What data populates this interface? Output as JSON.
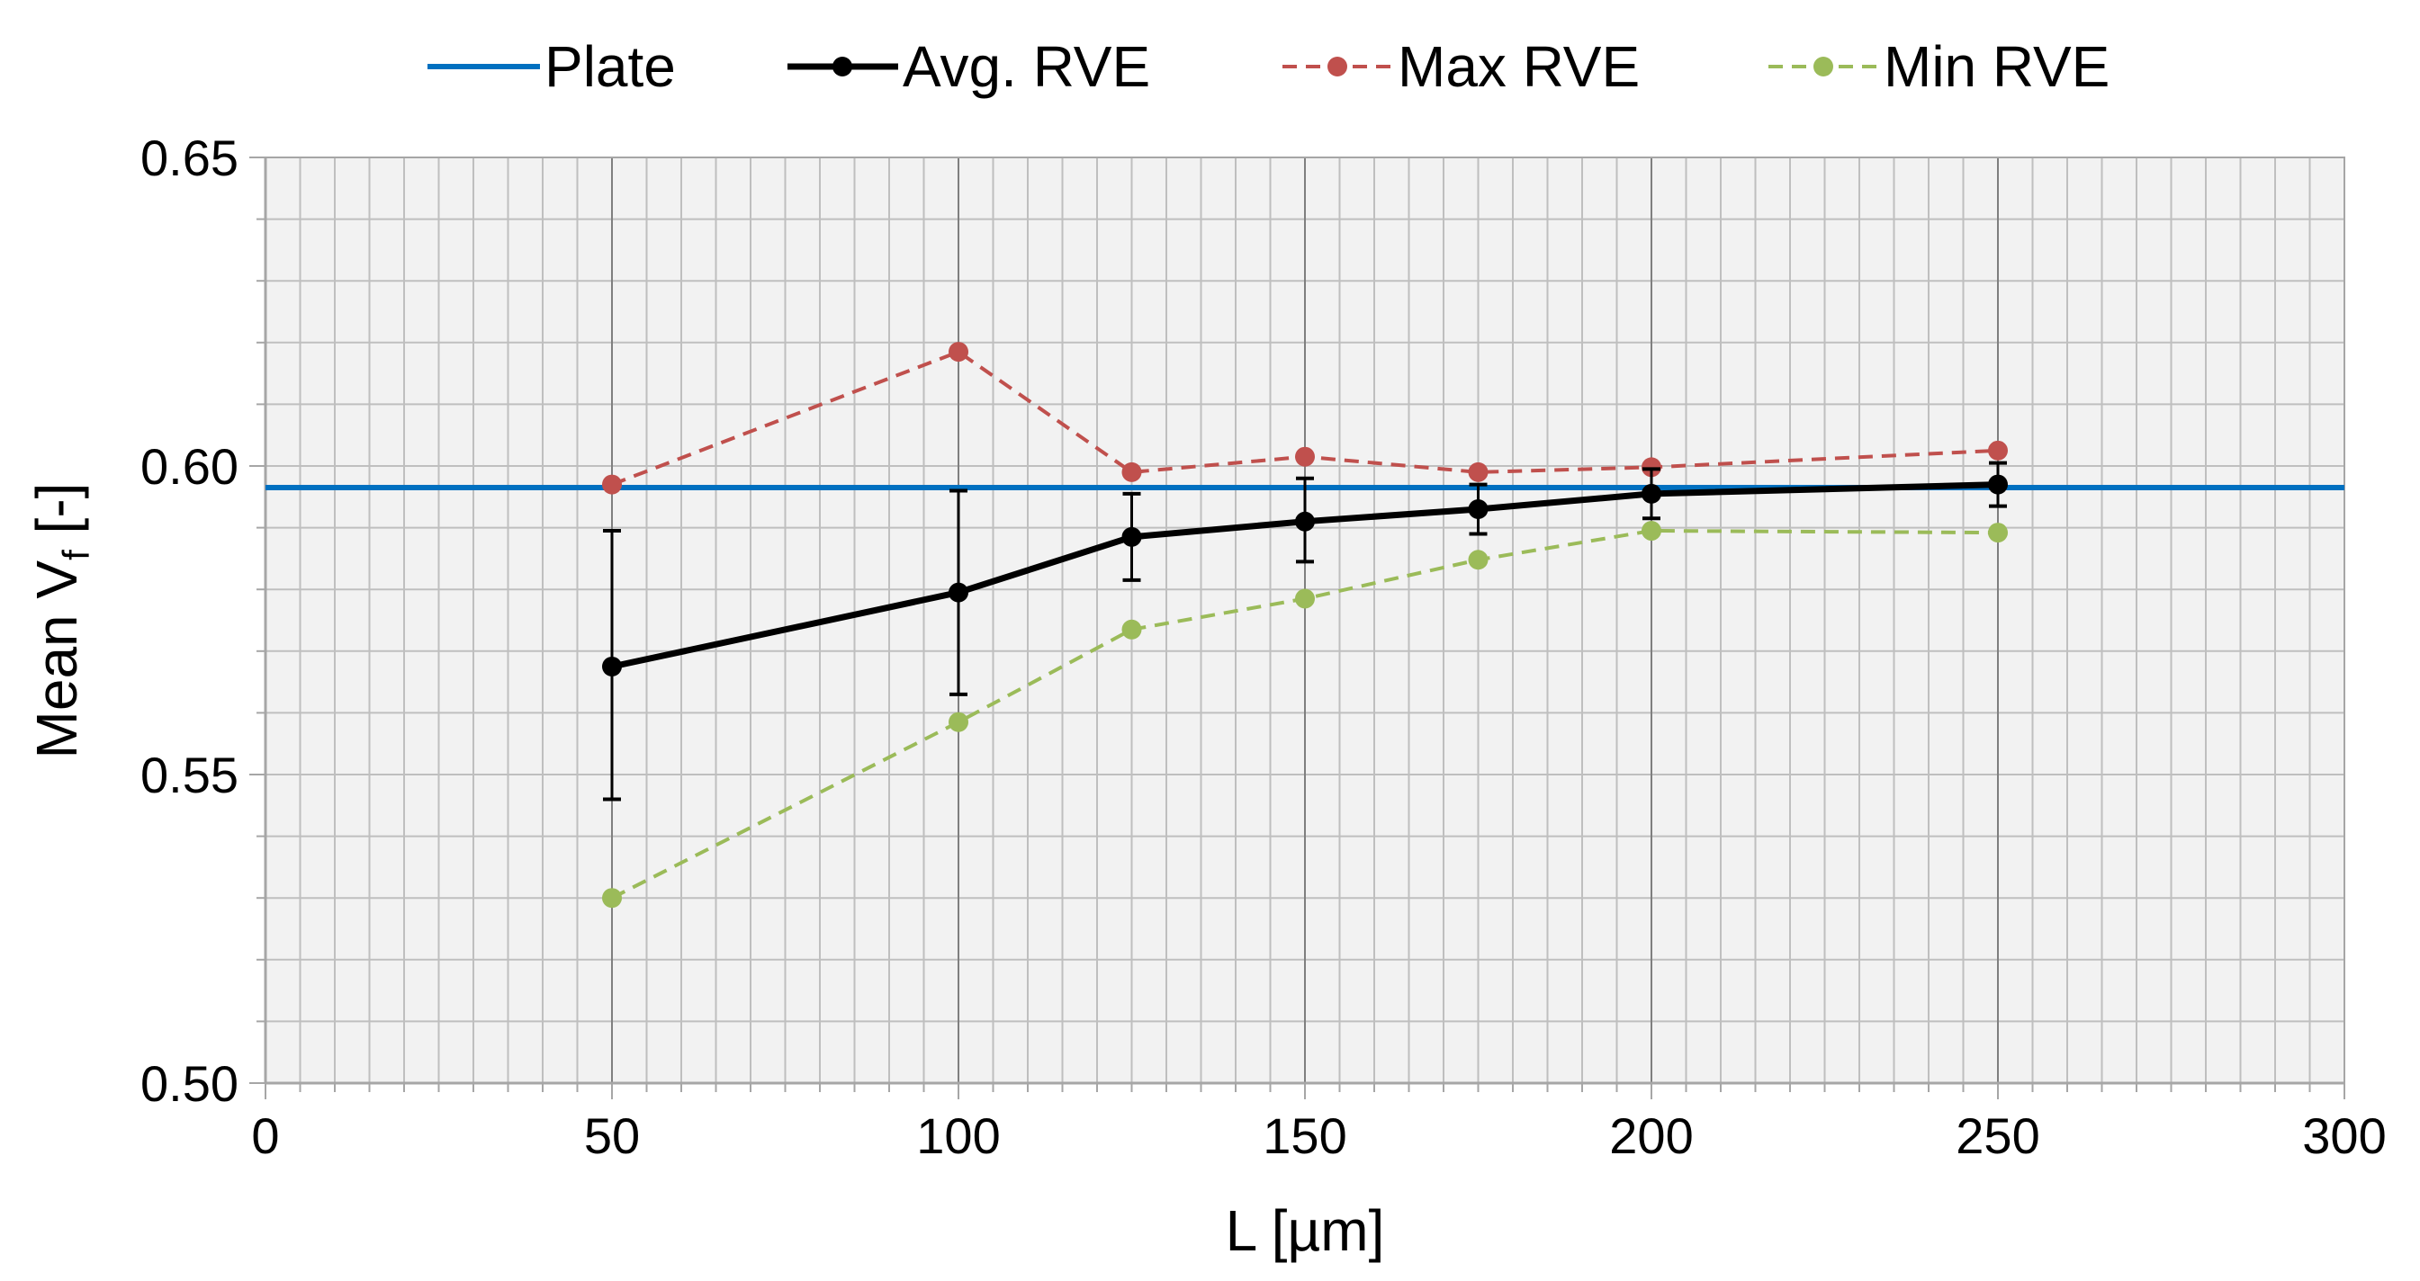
{
  "chart_data": {
    "type": "line",
    "title": "",
    "xlabel": "L [µm]",
    "ylabel_prefix": "Mean V",
    "ylabel_subscript": "f",
    "ylabel_suffix": " [-]",
    "xlim": [
      0,
      300
    ],
    "ylim": [
      0.5,
      0.65
    ],
    "x_major_step": 50,
    "x_minor_step": 5,
    "y_major_step": 0.05,
    "y_minor_step": 0.01,
    "x_tick_labels": [
      "0",
      "50",
      "100",
      "150",
      "200",
      "250",
      "300"
    ],
    "y_tick_labels": [
      "0.50",
      "0.55",
      "0.60",
      "0.65"
    ],
    "grid": true,
    "legend_position": "top",
    "reference_line": {
      "name": "Plate",
      "value": 0.5965,
      "color": "#0070C0"
    },
    "series": [
      {
        "name": "Avg. RVE",
        "color": "#000000",
        "style": "solid",
        "x": [
          50,
          100,
          125,
          150,
          175,
          200,
          250
        ],
        "values": [
          0.5675,
          0.5795,
          0.5885,
          0.591,
          0.593,
          0.5955,
          0.597
        ],
        "error_lower": [
          0.546,
          0.563,
          0.5815,
          0.5845,
          0.589,
          0.5915,
          0.5935
        ],
        "error_upper": [
          0.5895,
          0.596,
          0.5955,
          0.598,
          0.597,
          0.5995,
          0.6005
        ]
      },
      {
        "name": "Max RVE",
        "color": "#C0504D",
        "style": "dashed",
        "x": [
          50,
          100,
          125,
          150,
          175,
          200,
          250
        ],
        "values": [
          0.597,
          0.6185,
          0.599,
          0.6015,
          0.599,
          0.5998,
          0.6025
        ]
      },
      {
        "name": "Min RVE",
        "color": "#9BBB59",
        "style": "dashed",
        "x": [
          50,
          100,
          125,
          150,
          175,
          200,
          250
        ],
        "values": [
          0.53,
          0.5585,
          0.5735,
          0.5785,
          0.5848,
          0.5895,
          0.5892
        ]
      }
    ]
  }
}
